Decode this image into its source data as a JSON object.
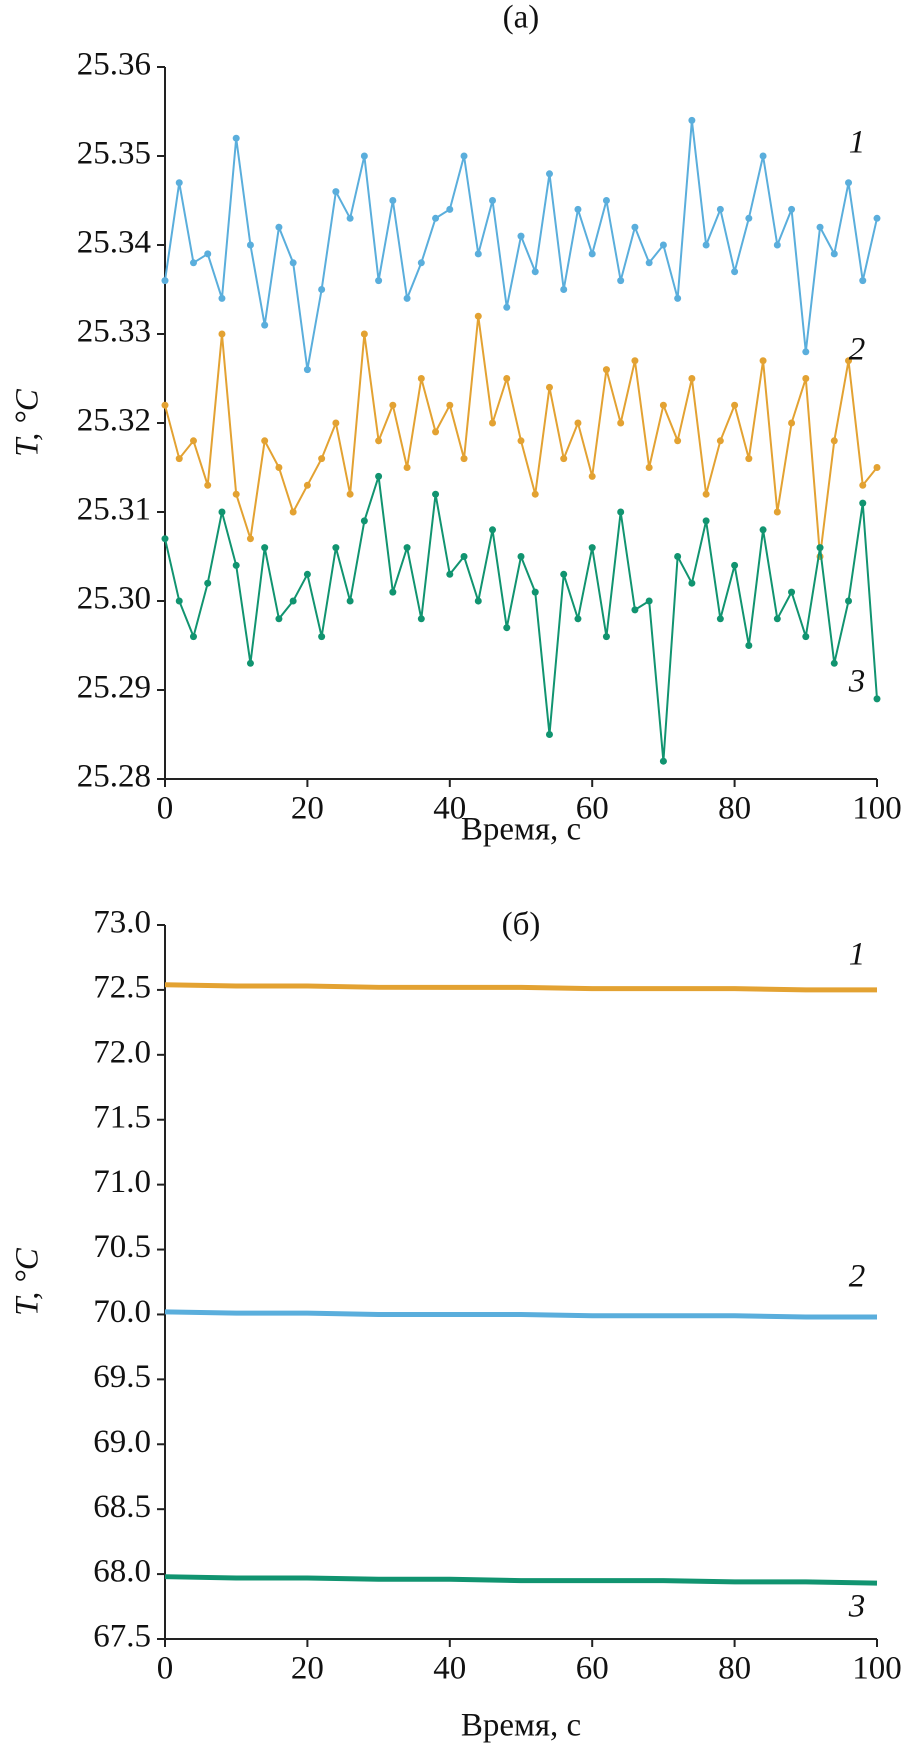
{
  "chart_data": [
    {
      "type": "line",
      "title": "(a)",
      "x_label": "Время, с",
      "y_label": "T, °C",
      "x": [
        0,
        2,
        4,
        6,
        8,
        10,
        12,
        14,
        16,
        18,
        20,
        22,
        24,
        26,
        28,
        30,
        32,
        34,
        36,
        38,
        40,
        42,
        44,
        46,
        48,
        50,
        52,
        54,
        56,
        58,
        60,
        62,
        64,
        66,
        68,
        70,
        72,
        74,
        76,
        78,
        80,
        82,
        84,
        86,
        88,
        90,
        92,
        94,
        96,
        98,
        100
      ],
      "series": [
        {
          "name": "1",
          "color": "#5aaedc",
          "values": [
            25.336,
            25.347,
            25.338,
            25.339,
            25.334,
            25.352,
            25.34,
            25.331,
            25.342,
            25.338,
            25.326,
            25.335,
            25.346,
            25.343,
            25.35,
            25.336,
            25.345,
            25.334,
            25.338,
            25.343,
            25.344,
            25.35,
            25.339,
            25.345,
            25.333,
            25.341,
            25.337,
            25.348,
            25.335,
            25.344,
            25.339,
            25.345,
            25.336,
            25.342,
            25.338,
            25.34,
            25.334,
            25.354,
            25.34,
            25.344,
            25.337,
            25.343,
            25.35,
            25.34,
            25.344,
            25.328,
            25.342,
            25.339,
            25.347,
            25.336,
            25.343
          ]
        },
        {
          "name": "2",
          "color": "#e3a232",
          "values": [
            25.322,
            25.316,
            25.318,
            25.313,
            25.33,
            25.312,
            25.307,
            25.318,
            25.315,
            25.31,
            25.313,
            25.316,
            25.32,
            25.312,
            25.33,
            25.318,
            25.322,
            25.315,
            25.325,
            25.319,
            25.322,
            25.316,
            25.332,
            25.32,
            25.325,
            25.318,
            25.312,
            25.324,
            25.316,
            25.32,
            25.314,
            25.326,
            25.32,
            25.327,
            25.315,
            25.322,
            25.318,
            25.325,
            25.312,
            25.318,
            25.322,
            25.316,
            25.327,
            25.31,
            25.32,
            25.325,
            25.305,
            25.318,
            25.327,
            25.313,
            25.315
          ]
        },
        {
          "name": "3",
          "color": "#119470",
          "values": [
            25.307,
            25.3,
            25.296,
            25.302,
            25.31,
            25.304,
            25.293,
            25.306,
            25.298,
            25.3,
            25.303,
            25.296,
            25.306,
            25.3,
            25.309,
            25.314,
            25.301,
            25.306,
            25.298,
            25.312,
            25.303,
            25.305,
            25.3,
            25.308,
            25.297,
            25.305,
            25.301,
            25.285,
            25.303,
            25.298,
            25.306,
            25.296,
            25.31,
            25.299,
            25.3,
            25.282,
            25.305,
            25.302,
            25.309,
            25.298,
            25.304,
            25.295,
            25.308,
            25.298,
            25.301,
            25.296,
            25.306,
            25.293,
            25.3,
            25.311,
            25.289
          ]
        }
      ],
      "xlim": [
        0,
        100
      ],
      "xticks": [
        0,
        20,
        40,
        60,
        80,
        100
      ],
      "ylim": [
        25.28,
        25.36
      ],
      "yticks": [
        25.28,
        25.29,
        {
          "value": 25.3,
          "label": "25.30"
        },
        25.31,
        25.32,
        25.33,
        25.34,
        25.35,
        25.36
      ]
    },
    {
      "type": "line",
      "title": "(б)",
      "x_label": "Время, с",
      "y_label": "T, °C",
      "x": [
        0,
        10,
        20,
        30,
        40,
        50,
        60,
        70,
        80,
        90,
        100
      ],
      "series": [
        {
          "name": "1",
          "color": "#e3a232",
          "values": [
            72.54,
            72.53,
            72.53,
            72.52,
            72.52,
            72.52,
            72.51,
            72.51,
            72.51,
            72.5,
            72.5
          ]
        },
        {
          "name": "2",
          "color": "#5aaedc",
          "values": [
            70.02,
            70.01,
            70.01,
            70.0,
            70.0,
            70.0,
            69.99,
            69.99,
            69.99,
            69.98,
            69.98
          ]
        },
        {
          "name": "3",
          "color": "#119470",
          "values": [
            67.98,
            67.97,
            67.97,
            67.96,
            67.96,
            67.95,
            67.95,
            67.95,
            67.94,
            67.94,
            67.93
          ]
        }
      ],
      "xlim": [
        0,
        100
      ],
      "xticks": [
        0,
        20,
        40,
        60,
        80,
        100
      ],
      "ylim": [
        67.5,
        73.0
      ],
      "yticks": [
        67.5,
        {
          "value": 68,
          "label": "68.0"
        },
        68.5,
        {
          "value": 69,
          "label": "69.0"
        },
        69.5,
        {
          "value": 70,
          "label": "70.0"
        },
        70.5,
        {
          "value": 71,
          "label": "71.0"
        },
        71.5,
        {
          "value": 72,
          "label": "72.0"
        },
        72.5,
        {
          "value": 73,
          "label": "73.0"
        }
      ]
    }
  ]
}
